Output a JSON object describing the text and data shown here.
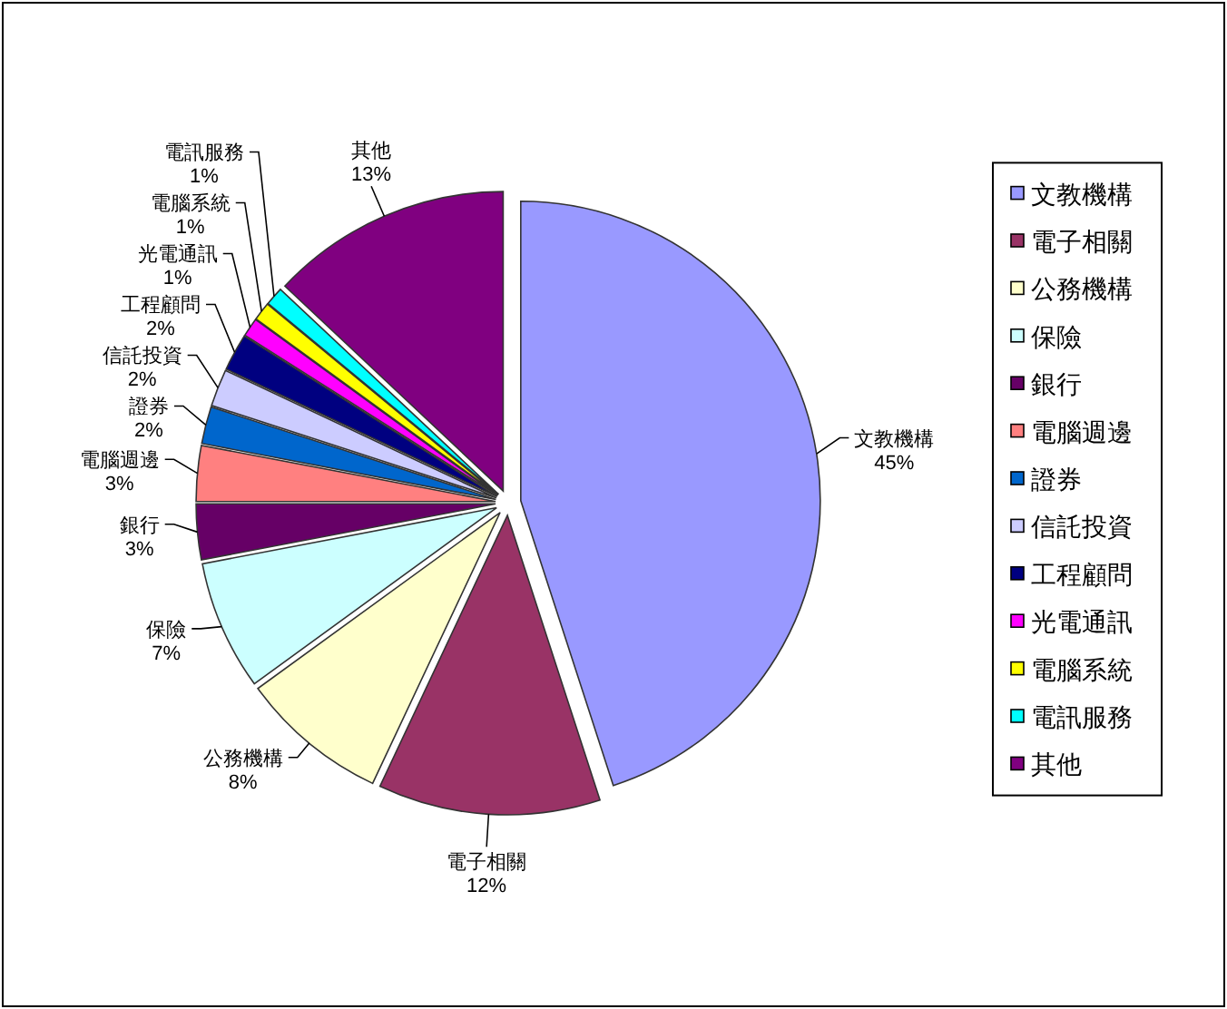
{
  "chart_data": {
    "type": "pie",
    "categories": [
      "文教機構",
      "電子相關",
      "公務機構",
      "保險",
      "銀行",
      "電腦週邊",
      "證券",
      "信託投資",
      "工程顧問",
      "光電通訊",
      "電腦系統",
      "電訊服務",
      "其他"
    ],
    "values": [
      45,
      12,
      8,
      7,
      3,
      3,
      2,
      2,
      2,
      1,
      1,
      1,
      13
    ],
    "value_labels": [
      "45%",
      "12%",
      "8%",
      "7%",
      "3%",
      "3%",
      "2%",
      "2%",
      "2%",
      "1%",
      "1%",
      "1%",
      "13%"
    ],
    "colors": [
      "#9999ff",
      "#993366",
      "#ffffcc",
      "#ccffff",
      "#660066",
      "#ff8080",
      "#0066cc",
      "#ccccff",
      "#000080",
      "#ff00ff",
      "#ffff00",
      "#00ffff",
      "#800080"
    ],
    "legend": "right"
  }
}
